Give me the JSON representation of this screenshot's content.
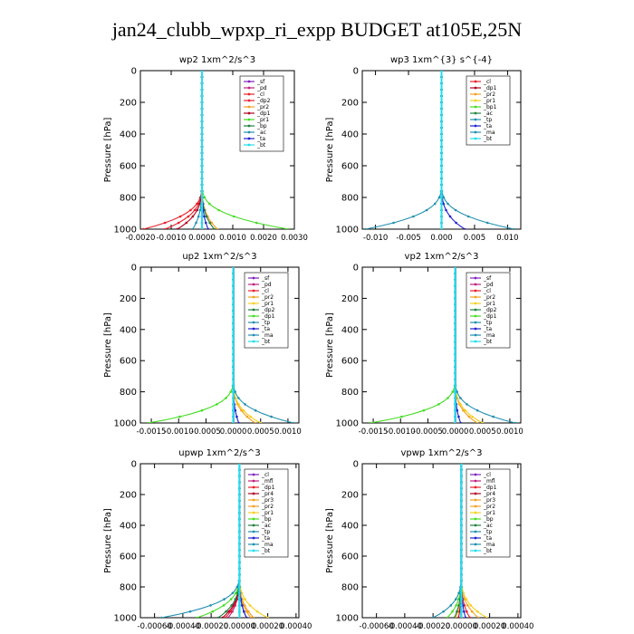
{
  "title": "jan24_clubb_wpxp_ri_expp  BUDGET at105E,25N",
  "colors": {
    "red": "#e8202a",
    "dark_red": "#b0001e",
    "green": "#44dd22",
    "yellow": "#f4d020",
    "orange": "#f4a020",
    "blue": "#2020d0",
    "teal": "#2090b0",
    "cyan": "#22ddee",
    "purple": "#8020c0",
    "magenta": "#c02080",
    "dark_green": "#208040"
  },
  "chart_data": [
    {
      "type": "line",
      "title": "wp2   1xm^2/s^3",
      "ylabel": "Pressure  [hPa]",
      "xlim": [
        -0.002,
        0.003
      ],
      "ylim": [
        1000,
        0
      ],
      "grid": false,
      "legend": "top-right",
      "xticks": [
        "-0.0020",
        "-0.0010",
        "0.0000",
        "0.0010",
        "0.0020",
        "0.0030"
      ],
      "xtick_values": [
        -0.002,
        -0.001,
        0,
        0.001,
        0.002,
        0.003
      ],
      "yticks": [
        "0",
        "200",
        "400",
        "600",
        "800",
        "1000"
      ],
      "ytick_values": [
        0,
        200,
        400,
        600,
        800,
        1000
      ],
      "series": [
        {
          "name": "_sf",
          "color": "#8020c0",
          "base": 0,
          "amp": 0
        },
        {
          "name": "_pd",
          "color": "#c02080",
          "base": 0,
          "amp": 0
        },
        {
          "name": "_cl",
          "color": "#e8202a",
          "base": 0,
          "amp": -0.0019
        },
        {
          "name": "_dp2",
          "color": "#e8202a",
          "base": 0,
          "amp": -0.0012
        },
        {
          "name": "_pr2",
          "color": "#f4a020",
          "base": 0,
          "amp": 0.0005
        },
        {
          "name": "_dp1",
          "color": "#b0001e",
          "base": 0,
          "amp": -0.0008
        },
        {
          "name": "_pr1",
          "color": "#44dd22",
          "base": 0,
          "amp": 0.0028
        },
        {
          "name": "_bp",
          "color": "#208040",
          "base": 0,
          "amp": 0.0004
        },
        {
          "name": "_ac",
          "color": "#2090b0",
          "base": 0,
          "amp": -0.0003
        },
        {
          "name": "_ta",
          "color": "#2020d0",
          "base": 0,
          "amp": 0.0002
        },
        {
          "name": "_bt",
          "color": "#22ddee",
          "base": 0,
          "amp": 0
        }
      ]
    },
    {
      "type": "line",
      "title": "wp3   1xm^{3} s^{-4}",
      "ylabel": "Pressure  [hPa]",
      "xlim": [
        -0.012,
        0.012
      ],
      "ylim": [
        1000,
        0
      ],
      "grid": false,
      "legend": "top-right",
      "xticks": [
        "-0.010",
        "-0.005",
        "0.000",
        "0.005",
        "0.010"
      ],
      "xtick_values": [
        -0.01,
        -0.005,
        0,
        0.005,
        0.01
      ],
      "yticks": [
        "0",
        "200",
        "400",
        "600",
        "800",
        "1000"
      ],
      "ytick_values": [
        0,
        200,
        400,
        600,
        800,
        1000
      ],
      "series": [
        {
          "name": "_cl",
          "color": "#e8202a",
          "base": 0,
          "amp": 0
        },
        {
          "name": "_dp1",
          "color": "#b0001e",
          "base": 0,
          "amp": 0
        },
        {
          "name": "_pr2",
          "color": "#f4a020",
          "base": 0,
          "amp": 0
        },
        {
          "name": "_pr1",
          "color": "#f4d020",
          "base": 0,
          "amp": 0
        },
        {
          "name": "_bp1",
          "color": "#44dd22",
          "base": 0,
          "amp": 0
        },
        {
          "name": "_ac",
          "color": "#208040",
          "base": 0,
          "amp": 0
        },
        {
          "name": "_tp",
          "color": "#2090b0",
          "base": 0,
          "amp": -0.0115
        },
        {
          "name": "_ta",
          "color": "#2020d0",
          "base": 0,
          "amp": 0.0035
        },
        {
          "name": "_ma",
          "color": "#2090b0",
          "base": 0,
          "amp": 0.011
        },
        {
          "name": "_bt",
          "color": "#22ddee",
          "base": 0,
          "amp": 0
        }
      ]
    },
    {
      "type": "line",
      "title": "up2   1xm^2/s^3",
      "ylabel": "Pressure  [hPa]",
      "xlim": [
        -0.0017,
        0.0012
      ],
      "ylim": [
        1000,
        0
      ],
      "grid": false,
      "legend": "top-right",
      "xticks": [
        "-0.0015",
        "-0.0010",
        "-0.0005",
        "0.0000",
        "0.0005",
        "0.0010"
      ],
      "xtick_values": [
        -0.0015,
        -0.001,
        -0.0005,
        0,
        0.0005,
        0.001
      ],
      "yticks": [
        "0",
        "200",
        "400",
        "600",
        "800",
        "1000"
      ],
      "ytick_values": [
        0,
        200,
        400,
        600,
        800,
        1000
      ],
      "series": [
        {
          "name": "_sf",
          "color": "#8020c0",
          "base": 0,
          "amp": 0
        },
        {
          "name": "_pd",
          "color": "#c02080",
          "base": 0,
          "amp": 0
        },
        {
          "name": "_cl",
          "color": "#e8202a",
          "base": 0,
          "amp": 0
        },
        {
          "name": "_pr2",
          "color": "#f4a020",
          "base": 0,
          "amp": 0.0004
        },
        {
          "name": "_pr1",
          "color": "#f4d020",
          "base": 0,
          "amp": 0.0005
        },
        {
          "name": "_dp2",
          "color": "#208040",
          "base": 0,
          "amp": 0
        },
        {
          "name": "_dp1",
          "color": "#44dd22",
          "base": 0,
          "amp": -0.00155
        },
        {
          "name": "_tp",
          "color": "#2090b0",
          "base": 0,
          "amp": 0.0011
        },
        {
          "name": "_ta",
          "color": "#2020d0",
          "base": 0,
          "amp": 0.0001
        },
        {
          "name": "_ma",
          "color": "#2090b0",
          "base": 0,
          "amp": 0
        },
        {
          "name": "_bt",
          "color": "#22ddee",
          "base": 0,
          "amp": 0
        }
      ]
    },
    {
      "type": "line",
      "title": "vp2   1xm^2/s^3",
      "ylabel": "Pressure  [hPa]",
      "xlim": [
        -0.0017,
        0.0012
      ],
      "ylim": [
        1000,
        0
      ],
      "grid": false,
      "legend": "top-right",
      "xticks": [
        "-0.0015",
        "-0.0010",
        "-0.0005",
        "0.0000",
        "0.0005",
        "0.0010"
      ],
      "xtick_values": [
        -0.0015,
        -0.001,
        -0.0005,
        0,
        0.0005,
        0.001
      ],
      "yticks": [
        "0",
        "200",
        "400",
        "600",
        "800",
        "1000"
      ],
      "ytick_values": [
        0,
        200,
        400,
        600,
        800,
        1000
      ],
      "series": [
        {
          "name": "_sf",
          "color": "#8020c0",
          "base": 0,
          "amp": 0
        },
        {
          "name": "_pd",
          "color": "#c02080",
          "base": 0,
          "amp": 0
        },
        {
          "name": "_cl",
          "color": "#e8202a",
          "base": 0,
          "amp": 0
        },
        {
          "name": "_pr2",
          "color": "#f4a020",
          "base": 0,
          "amp": 0.0004
        },
        {
          "name": "_pr1",
          "color": "#f4d020",
          "base": 0,
          "amp": 0.0005
        },
        {
          "name": "_dp2",
          "color": "#208040",
          "base": 0,
          "amp": 0
        },
        {
          "name": "_dp1",
          "color": "#44dd22",
          "base": 0,
          "amp": -0.00155
        },
        {
          "name": "_tp",
          "color": "#2090b0",
          "base": 0,
          "amp": 0.0011
        },
        {
          "name": "_ta",
          "color": "#2020d0",
          "base": 0,
          "amp": 0.0001
        },
        {
          "name": "_ma",
          "color": "#2090b0",
          "base": 0,
          "amp": 0
        },
        {
          "name": "_bt",
          "color": "#22ddee",
          "base": 0,
          "amp": 0
        }
      ]
    },
    {
      "type": "line",
      "title": "upwp   1xm^2/s^3",
      "ylabel": "Pressure  [hPa]",
      "xlim": [
        -0.0007,
        0.00042
      ],
      "ylim": [
        1000,
        0
      ],
      "grid": false,
      "legend": "top-right",
      "xticks": [
        "-0.00060",
        "-0.00040",
        "-0.00020",
        "0.00000",
        "0.00020",
        "0.00040"
      ],
      "xtick_values": [
        -0.0006,
        -0.0004,
        -0.0002,
        0,
        0.0002,
        0.0004
      ],
      "yticks": [
        "0",
        "200",
        "400",
        "600",
        "800",
        "1000"
      ],
      "ytick_values": [
        0,
        200,
        400,
        600,
        800,
        1000
      ],
      "series": [
        {
          "name": "_cl",
          "color": "#8020c0",
          "base": 0,
          "amp": 5e-05
        },
        {
          "name": "_mfl",
          "color": "#c02080",
          "base": 0,
          "amp": -8e-05
        },
        {
          "name": "_dp1",
          "color": "#e8202a",
          "base": 0,
          "amp": -0.0001
        },
        {
          "name": "_pr4",
          "color": "#b0001e",
          "base": 0,
          "amp": -0.00012
        },
        {
          "name": "_pr3",
          "color": "#f4a020",
          "base": 0,
          "amp": 0.0001
        },
        {
          "name": "_pr2",
          "color": "#f4a020",
          "base": 0,
          "amp": 8e-05
        },
        {
          "name": "_pr1",
          "color": "#f4d020",
          "base": 0,
          "amp": 0.0002
        },
        {
          "name": "_bp",
          "color": "#44dd22",
          "base": 0,
          "amp": -0.0003
        },
        {
          "name": "_ac",
          "color": "#208040",
          "base": 0,
          "amp": -0.00015
        },
        {
          "name": "_tp",
          "color": "#2090b0",
          "base": 0,
          "amp": -0.00055
        },
        {
          "name": "_ta",
          "color": "#2020d0",
          "base": 0,
          "amp": 5e-05
        },
        {
          "name": "_ma",
          "color": "#2090b0",
          "base": 0,
          "amp": 0
        },
        {
          "name": "_bt",
          "color": "#22ddee",
          "base": 0,
          "amp": 0
        }
      ]
    },
    {
      "type": "line",
      "title": "vpwp   1xm^2/s^3",
      "ylabel": "Pressure  [hPa]",
      "xlim": [
        -0.0007,
        0.00042
      ],
      "ylim": [
        1000,
        0
      ],
      "grid": false,
      "legend": "top-right",
      "xticks": [
        "-0.00060",
        "-0.00040",
        "-0.00020",
        "0.00000",
        "0.00020",
        "0.00040"
      ],
      "xtick_values": [
        -0.0006,
        -0.0004,
        -0.0002,
        0,
        0.0002,
        0.0004
      ],
      "yticks": [
        "0",
        "200",
        "400",
        "600",
        "800",
        "1000"
      ],
      "ytick_values": [
        0,
        200,
        400,
        600,
        800,
        1000
      ],
      "series": [
        {
          "name": "_cl",
          "color": "#8020c0",
          "base": 0,
          "amp": 0
        },
        {
          "name": "_mfl",
          "color": "#c02080",
          "base": 0,
          "amp": 0
        },
        {
          "name": "_dp1",
          "color": "#e8202a",
          "base": 0,
          "amp": 6e-05
        },
        {
          "name": "_pr4",
          "color": "#b0001e",
          "base": 0,
          "amp": -2e-05
        },
        {
          "name": "_pr3",
          "color": "#f4a020",
          "base": 0,
          "amp": 0.00012
        },
        {
          "name": "_pr2",
          "color": "#f4a020",
          "base": 0,
          "amp": -4e-05
        },
        {
          "name": "_pr1",
          "color": "#f4d020",
          "base": 0,
          "amp": 0.00018
        },
        {
          "name": "_bp",
          "color": "#44dd22",
          "base": 0,
          "amp": -0.0001
        },
        {
          "name": "_ac",
          "color": "#208040",
          "base": 0,
          "amp": -5e-05
        },
        {
          "name": "_tp",
          "color": "#2090b0",
          "base": 0,
          "amp": -0.0002
        },
        {
          "name": "_ta",
          "color": "#2020d0",
          "base": 0,
          "amp": 3e-05
        },
        {
          "name": "_ma",
          "color": "#2090b0",
          "base": 0,
          "amp": 0
        },
        {
          "name": "_bt",
          "color": "#22ddee",
          "base": 0,
          "amp": 0
        }
      ]
    }
  ]
}
